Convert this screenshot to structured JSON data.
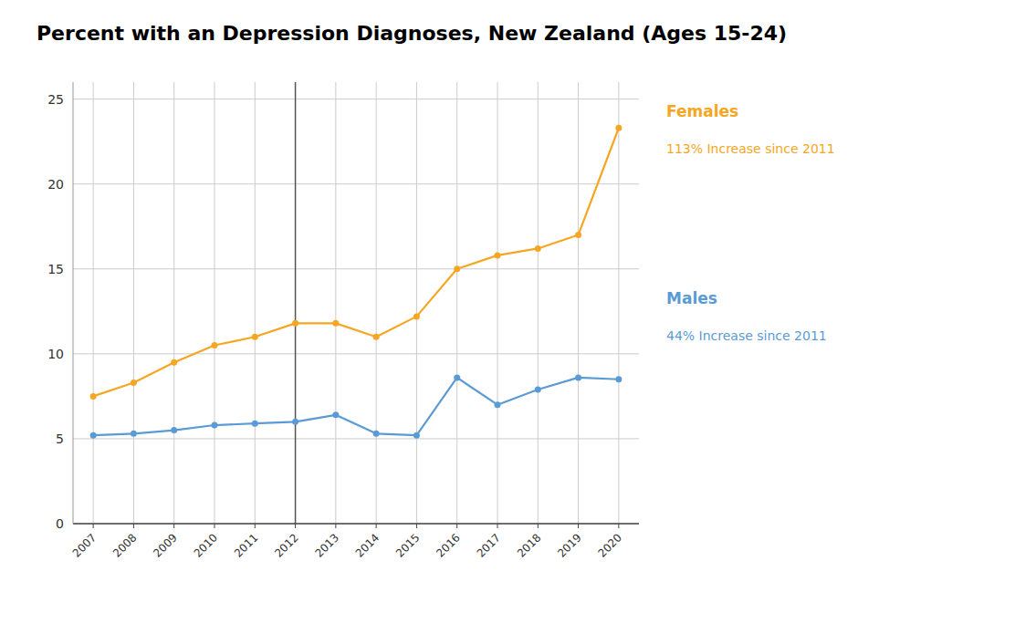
{
  "chart_data": {
    "type": "line",
    "title": "Percent with an Depression Diagnoses, New Zealand (Ages 15-24)",
    "x": [
      2007,
      2008,
      2009,
      2010,
      2011,
      2012,
      2013,
      2014,
      2015,
      2016,
      2017,
      2018,
      2019,
      2020
    ],
    "series": [
      {
        "name": "Females",
        "color": "#F5A623",
        "marker": "circle",
        "values": [
          7.5,
          8.3,
          9.5,
          10.5,
          11.0,
          11.8,
          11.8,
          11.0,
          12.2,
          15.0,
          15.8,
          16.2,
          17.0,
          23.3
        ]
      },
      {
        "name": "Males",
        "color": "#5B9BD5",
        "marker": "circle",
        "values": [
          5.2,
          5.3,
          5.5,
          5.8,
          5.9,
          6.0,
          6.4,
          5.3,
          5.2,
          8.6,
          7.0,
          7.9,
          8.6,
          8.5
        ]
      }
    ],
    "annotations": [
      "113% Increase since 2011",
      "44% Increase since 2011"
    ],
    "reference_lines": [
      {
        "x": 2012,
        "color": "#555555"
      }
    ],
    "xlim": [
      2006.5,
      2020.5
    ],
    "xticks": [
      2007,
      2008,
      2009,
      2010,
      2011,
      2012,
      2013,
      2014,
      2015,
      2016,
      2017,
      2018,
      2019,
      2020
    ],
    "ylim": [
      0,
      26
    ],
    "yticks": [
      0,
      5,
      10,
      15,
      20,
      25
    ],
    "grid": true
  }
}
